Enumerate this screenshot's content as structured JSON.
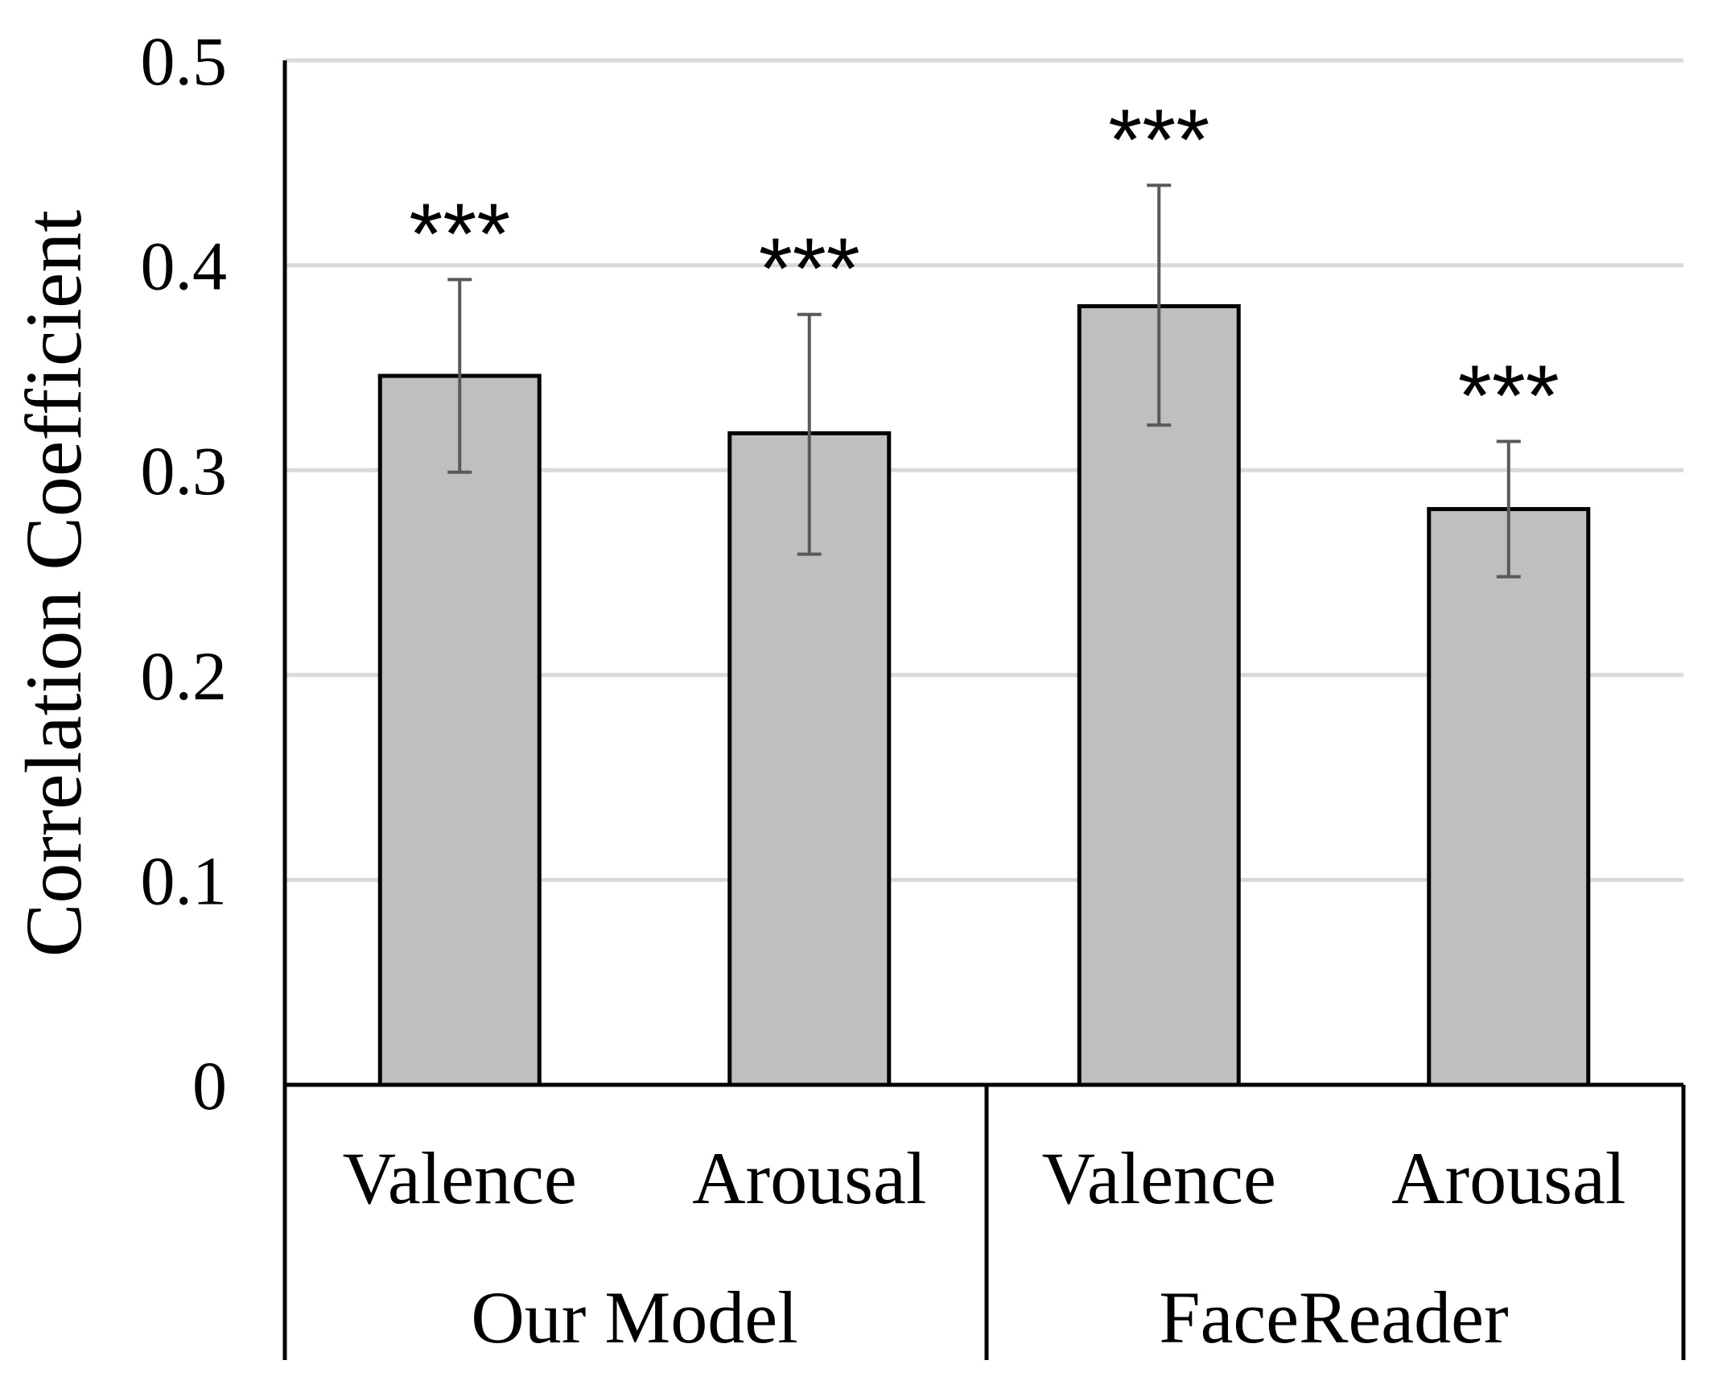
{
  "chart_data": {
    "type": "bar",
    "title": "",
    "xlabel": "",
    "ylabel": "Correlation Coefficient",
    "ylim": [
      0,
      0.5
    ],
    "yticks": [
      {
        "value": 0,
        "label": "0"
      },
      {
        "value": 0.1,
        "label": "0.1"
      },
      {
        "value": 0.2,
        "label": "0.2"
      },
      {
        "value": 0.3,
        "label": "0.3"
      },
      {
        "value": 0.4,
        "label": "0.4"
      },
      {
        "value": 0.5,
        "label": "0.5"
      }
    ],
    "grid": true,
    "groups": [
      {
        "name": "Our Model",
        "categories": [
          "Valence",
          "Arousal"
        ]
      },
      {
        "name": "FaceReader",
        "categories": [
          "Valence",
          "Arousal"
        ]
      }
    ],
    "categories": [
      "Valence",
      "Arousal",
      "Valence",
      "Arousal"
    ],
    "values": [
      0.346,
      0.318,
      0.38,
      0.281
    ],
    "error_low": [
      0.299,
      0.259,
      0.322,
      0.248
    ],
    "error_high": [
      0.393,
      0.376,
      0.439,
      0.314
    ],
    "significance": [
      "***",
      "***",
      "***",
      "***"
    ],
    "colors": {
      "bar_fill": "#bfbfbf",
      "bar_stroke": "#000000",
      "error_bar": "#595959",
      "grid": "#d9d9d9",
      "axis": "#000000"
    }
  }
}
